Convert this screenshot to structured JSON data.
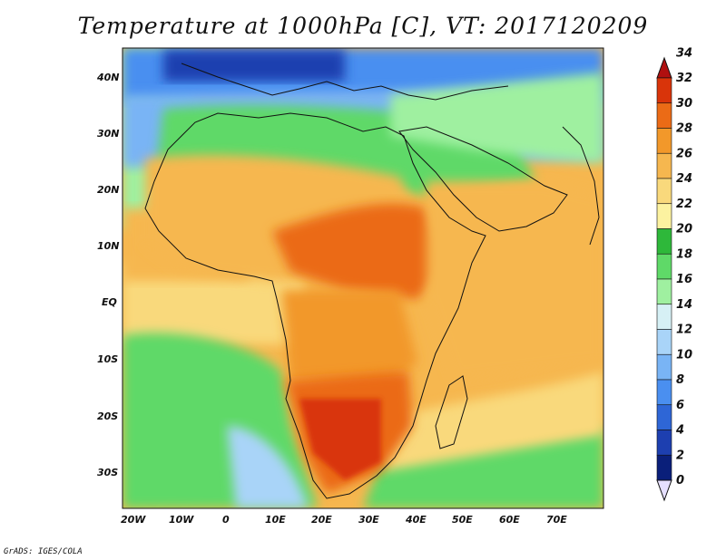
{
  "title": "Temperature at 1000hPa [C], VT: 2017120209",
  "credit": "GrADS: IGES/COLA",
  "lat_ticks": [
    "40N",
    "30N",
    "20N",
    "10N",
    "EQ",
    "10S",
    "20S",
    "30S"
  ],
  "lon_ticks": [
    "20W",
    "10W",
    "0",
    "10E",
    "20E",
    "30E",
    "40E",
    "50E",
    "60E",
    "70E"
  ],
  "colorbar": {
    "labels": [
      "0",
      "2",
      "4",
      "6",
      "8",
      "10",
      "12",
      "14",
      "16",
      "18",
      "20",
      "22",
      "24",
      "26",
      "28",
      "30",
      "32",
      "34"
    ],
    "colors": [
      "#0a1f7a",
      "#1d3fb0",
      "#2e66d6",
      "#4a8ff0",
      "#79b4f5",
      "#a9d4f8",
      "#d6f0f5",
      "#9ff0a0",
      "#5fd968",
      "#2eb83a",
      "#fcf2a0",
      "#f9d97c",
      "#f6b74f",
      "#f2982a",
      "#eb6b16",
      "#d9340a"
    ],
    "low_color": "#e6e0ff",
    "high_color": "#b01010"
  },
  "map": {
    "variable": "Temperature at 1000hPa",
    "units": "C",
    "land_colors": {
      "north_africa": "#5fd968",
      "sahel": "#f6b74f",
      "hot_core": "#eb6b16",
      "kalahari": "#d9340a",
      "europe": "#4a8ff0"
    },
    "ocean_colors": {
      "south_atlantic": "#5fd968",
      "equatorial_atlantic": "#f9d97c",
      "indian_ocean": "#f6b74f",
      "mediterranean": "#79b4f5"
    }
  }
}
